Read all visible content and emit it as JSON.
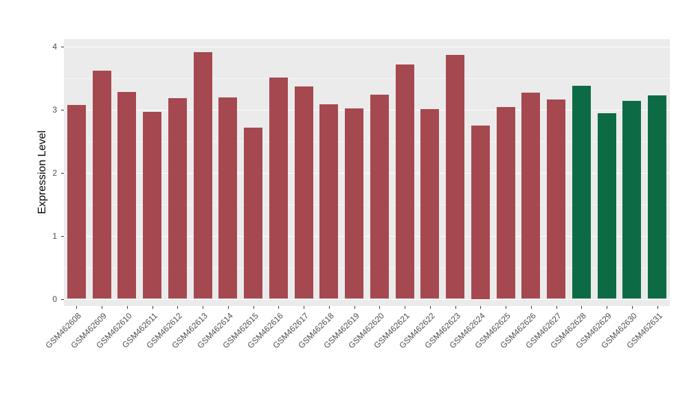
{
  "chart_data": {
    "type": "bar",
    "title": "",
    "xlabel": "",
    "ylabel": "Expression Level",
    "ylim": [
      0,
      4
    ],
    "yticks": [
      0,
      1,
      2,
      3,
      4
    ],
    "x_tick_angle": 45,
    "legend": "none",
    "grid": "on",
    "panel_background": "#EBEBEB",
    "gridline_color": "#FFFFFF",
    "axis_text_color": "#4D4D4D",
    "categories": [
      "GSM462608",
      "GSM462609",
      "GSM462610",
      "GSM462611",
      "GSM462612",
      "GSM462613",
      "GSM462614",
      "GSM462615",
      "GSM462616",
      "GSM462617",
      "GSM462618",
      "GSM462619",
      "GSM462620",
      "GSM462621",
      "GSM462622",
      "GSM462623",
      "GSM462624",
      "GSM462625",
      "GSM462626",
      "GSM462627",
      "GSM462628",
      "GSM462629",
      "GSM462630",
      "GSM462631"
    ],
    "values": [
      3.08,
      3.62,
      3.28,
      2.97,
      3.18,
      3.91,
      3.19,
      2.72,
      3.51,
      3.37,
      3.09,
      3.02,
      3.24,
      3.72,
      3.01,
      3.87,
      2.75,
      3.04,
      3.27,
      3.16,
      3.38,
      2.94,
      3.14,
      3.23
    ],
    "bar_groups": [
      "group1",
      "group1",
      "group1",
      "group1",
      "group1",
      "group1",
      "group1",
      "group1",
      "group1",
      "group1",
      "group1",
      "group1",
      "group1",
      "group1",
      "group1",
      "group1",
      "group1",
      "group1",
      "group1",
      "group1",
      "group2",
      "group2",
      "group2",
      "group2"
    ],
    "group_colors": {
      "group1": "#A5484F",
      "group2": "#0C6B45"
    }
  }
}
